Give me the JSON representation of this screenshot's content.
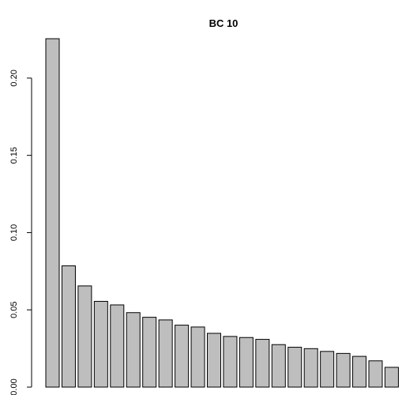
{
  "chart_data": {
    "type": "bar",
    "title": "BC 10",
    "xlabel": "",
    "ylabel": "",
    "categories": [
      "",
      "",
      "",
      "",
      "",
      "",
      "",
      "",
      "",
      "",
      "",
      "",
      "",
      "",
      "",
      "",
      "",
      "",
      "",
      "",
      "",
      ""
    ],
    "values": [
      0.2255,
      0.0785,
      0.0655,
      0.0555,
      0.0532,
      0.0482,
      0.0452,
      0.0435,
      0.0401,
      0.0389,
      0.0348,
      0.0328,
      0.0321,
      0.0309,
      0.0275,
      0.0258,
      0.0249,
      0.0231,
      0.0218,
      0.0199,
      0.017,
      0.0128
    ],
    "ylim": [
      0,
      0.2255
    ],
    "yticks": [
      0.0,
      0.05,
      0.1,
      0.15,
      0.2
    ],
    "ytick_labels": [
      "0.00",
      "0.05",
      "0.10",
      "0.15",
      "0.20"
    ],
    "bar_color": "#bebebe",
    "bar_edge_color": "#000000",
    "grid": false,
    "legend": "none"
  }
}
